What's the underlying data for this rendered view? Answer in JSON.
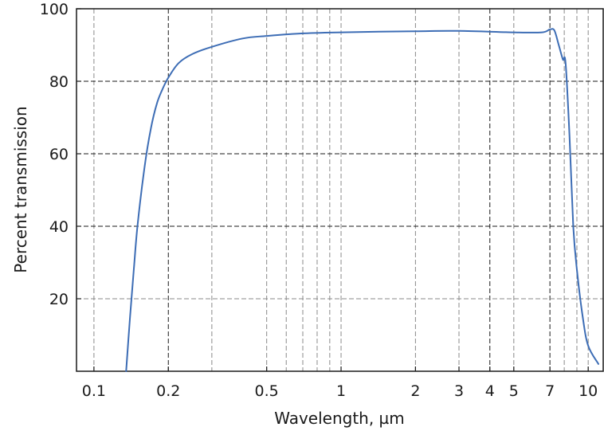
{
  "chart_data": {
    "type": "line",
    "title": "",
    "xlabel": "Wavelength, µm",
    "ylabel": "Percent transmission",
    "x_scale": "log",
    "xlim": [
      0.085,
      11.5
    ],
    "ylim": [
      0,
      100
    ],
    "grid": true,
    "x_ticks": [
      {
        "value": 0.1,
        "label": "0.1"
      },
      {
        "value": 0.2,
        "label": "0.2"
      },
      {
        "value": 0.5,
        "label": "0.5"
      },
      {
        "value": 1,
        "label": "1"
      },
      {
        "value": 2,
        "label": "2"
      },
      {
        "value": 3,
        "label": "3"
      },
      {
        "value": 4,
        "label": "4"
      },
      {
        "value": 5,
        "label": "5"
      },
      {
        "value": 7,
        "label": "7"
      },
      {
        "value": 10,
        "label": "10"
      }
    ],
    "y_ticks": [
      {
        "value": 20,
        "label": "20"
      },
      {
        "value": 40,
        "label": "40"
      },
      {
        "value": 60,
        "label": "60"
      },
      {
        "value": 80,
        "label": "80"
      },
      {
        "value": 100,
        "label": "100"
      }
    ],
    "x_major_grid": [
      0.2,
      4,
      7
    ],
    "x_minor_grid": [
      0.1,
      0.3,
      0.5,
      0.6,
      0.7,
      0.8,
      0.9,
      1,
      2,
      3,
      5,
      8,
      9,
      10
    ],
    "y_major_grid": [
      40,
      60,
      80
    ],
    "y_minor_grid": [
      20
    ],
    "line_color": "#3d6db5",
    "series": [
      {
        "x": [
          0.135,
          0.14,
          0.145,
          0.15,
          0.16,
          0.17,
          0.18,
          0.19,
          0.2,
          0.22,
          0.25,
          0.3,
          0.4,
          0.5,
          0.7,
          1,
          2,
          3,
          5,
          6.5,
          7,
          7.3,
          7.6,
          7.9,
          8.1,
          8.4,
          8.7,
          9,
          9.5,
          10,
          11
        ],
        "y": [
          0,
          15,
          28,
          40,
          56,
          67,
          74,
          78,
          81,
          85,
          87.5,
          89.5,
          91.8,
          92.5,
          93.2,
          93.5,
          93.8,
          93.9,
          93.5,
          93.5,
          94.3,
          94,
          90,
          86,
          85,
          65,
          40,
          28,
          15,
          7,
          2
        ]
      }
    ]
  }
}
